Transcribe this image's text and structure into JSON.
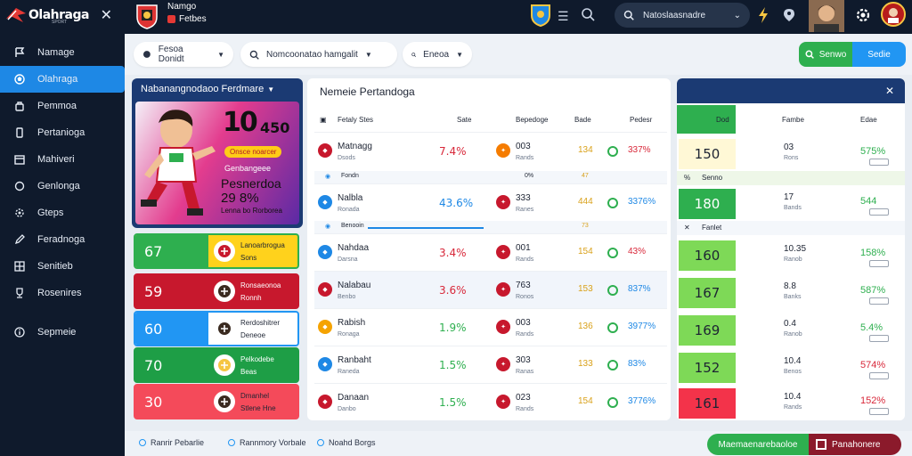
{
  "app": {
    "brand": "Olahraga",
    "brand_sub": "SPORT"
  },
  "sidebar": {
    "items": [
      {
        "label": "Namage",
        "icon": "flag-icon"
      },
      {
        "label": "Olahraga",
        "icon": "ball-icon",
        "active": true
      },
      {
        "label": "Pemmoa",
        "icon": "bag-icon"
      },
      {
        "label": "Pertanioga",
        "icon": "phone-icon"
      },
      {
        "label": "Mahiveri",
        "icon": "calendar-icon"
      },
      {
        "label": "Genlonga",
        "icon": "chat-icon"
      },
      {
        "label": "Gteps",
        "icon": "settings-icon"
      },
      {
        "label": "Feradnoga",
        "icon": "pen-icon"
      },
      {
        "label": "Senitieb",
        "icon": "grid-icon"
      },
      {
        "label": "Rosenires",
        "icon": "trophy-icon"
      },
      {
        "label": "Sepmeie",
        "icon": "info-icon"
      }
    ]
  },
  "topbar": {
    "title": "Namgo",
    "subtitle": "Fetbes",
    "search_text": "Natoslaasnadre"
  },
  "filters": [
    {
      "label": "Fesoa  Donidt",
      "chevron": true
    },
    {
      "label": "Nomcoonatao hamgalit",
      "chevron": true
    },
    {
      "label": "Eneoa",
      "chevron": true
    }
  ],
  "toggle": {
    "a": "Senwo",
    "b": "Sedie"
  },
  "promo": {
    "header": "Nabanangnodaoo  Ferdmare",
    "big": "10",
    "big2": "450",
    "tag": "Onsce noarcer",
    "l1": "Genbangeee",
    "l2": "Pesnerdoa",
    "l3": "29 8%",
    "l4": "Lenna bo  Rorborea"
  },
  "quick": [
    {
      "num": "67",
      "l1": "Lanoarbrogua",
      "l2": "Sons",
      "left": "#2eaf4f",
      "right": "#ffd21c",
      "text": "#1d2433"
    },
    {
      "num": "59",
      "l1": "Ronsaeonoa",
      "l2": "Ronnh",
      "left": "#c7182d",
      "right": "#c7182d",
      "text": "#ffffff"
    },
    {
      "num": "60",
      "l1": "Rerdoshitrer",
      "l2": "Deneoe",
      "left": "#2196f3",
      "right": "#ffffff",
      "text": "#1d2433"
    },
    {
      "num": "70",
      "l1": "Pelkodebe",
      "l2": "Beas",
      "left": "#1e9e46",
      "right": "#1e9e46",
      "text": "#ffffff"
    },
    {
      "num": "30",
      "l1": "Dmanhel",
      "l2": "Stlene  Hne",
      "left": "#f44a5a",
      "right": "#f44a5a",
      "text": "#1d2433"
    }
  ],
  "main": {
    "title": "Nemeie  Pertandoga",
    "headers": {
      "team": "Fetaly  Stes",
      "a": "Sate",
      "b": "Bepedoge",
      "c": "Bade",
      "d": "Pedesr"
    },
    "rows": [
      {
        "name": "Matnagg",
        "sub": "Dsods",
        "pct": "7.4%",
        "pct_color": "#d8283a",
        "b1": "003",
        "b2": "Rands",
        "odd": "134",
        "exc": "337%",
        "exc_color": "#d8283a",
        "ic1": "#c7182d",
        "ic2": "#f57c00"
      },
      {
        "name": "Nalbla",
        "sub": "Ronada",
        "pct": "43.6%",
        "pct_color": "#1e88e5",
        "b1": "333",
        "b2": "Ranes",
        "odd": "444",
        "exc": "3376%",
        "exc_color": "#1e88e5",
        "ic1": "#1e88e5",
        "ic2": "#c7182d"
      },
      {
        "name": "Nahdaa",
        "sub": "Darsna",
        "pct": "3.4%",
        "pct_color": "#d8283a",
        "b1": "001",
        "b2": "Rands",
        "odd": "154",
        "exc": "43%",
        "exc_color": "#d8283a",
        "ic1": "#1e88e5",
        "ic2": "#c7182d"
      },
      {
        "name": "Nalabau",
        "sub": "Benbo",
        "pct": "3.6%",
        "pct_color": "#d8283a",
        "b1": "763",
        "b2": "Ronos",
        "odd": "153",
        "exc": "837%",
        "exc_color": "#1e88e5",
        "ic1": "#c7182d",
        "ic2": "#c7182d"
      },
      {
        "name": "Rabish",
        "sub": "Ronaga",
        "pct": "1.9%",
        "pct_color": "#2eaf4f",
        "b1": "003",
        "b2": "Rands",
        "odd": "136",
        "exc": "3977%",
        "exc_color": "#1e88e5",
        "ic1": "#f5a300",
        "ic2": "#c7182d"
      },
      {
        "name": "Ranbaht",
        "sub": "Raneda",
        "pct": "1.5%",
        "pct_color": "#2eaf4f",
        "b1": "303",
        "b2": "Ranas",
        "odd": "133",
        "exc": "83%",
        "exc_color": "#1e88e5",
        "ic1": "#1e88e5",
        "ic2": "#c7182d"
      },
      {
        "name": "Danaan",
        "sub": "Danbo",
        "pct": "1.5%",
        "pct_color": "#2eaf4f",
        "b1": "023",
        "b2": "Rands",
        "odd": "154",
        "exc": "3776%",
        "exc_color": "#1e88e5",
        "ic1": "#c7182d",
        "ic2": "#c7182d"
      }
    ],
    "thin1": {
      "a": "Fondn",
      "b": "0%",
      "c": "47"
    },
    "thin2": {
      "a": "Benooin",
      "b": "73"
    }
  },
  "right": {
    "headers": {
      "a": "Dod",
      "b": "Fambe",
      "c": "Edae"
    },
    "thin1": "Senno",
    "thin2": "Fanlet",
    "rows": [
      {
        "num": "150",
        "bg": "#fff8d6",
        "color": "#1d2433",
        "v1": "03",
        "v2": "Rons",
        "v3": "575%",
        "v3c": "#2eaf4f"
      },
      {
        "num": "180",
        "bg": "#2eaf4f",
        "color": "#ffffff",
        "v1": "17",
        "v2": "Bands",
        "v3": "544",
        "v3c": "#2eaf4f"
      },
      {
        "num": "160",
        "bg": "#7ed957",
        "color": "#1d2433",
        "v1": "10.35",
        "v2": "Ranob",
        "v3": "158%",
        "v3c": "#2eaf4f"
      },
      {
        "num": "167",
        "bg": "#7ed957",
        "color": "#1d2433",
        "v1": "8.8",
        "v2": "Banks",
        "v3": "587%",
        "v3c": "#2eaf4f"
      },
      {
        "num": "169",
        "bg": "#7ed957",
        "color": "#1d2433",
        "v1": "0.4",
        "v2": "Ranob",
        "v3": "5.4%",
        "v3c": "#2eaf4f"
      },
      {
        "num": "152",
        "bg": "#7ed957",
        "color": "#1d2433",
        "v1": "10.4",
        "v2": "Benos",
        "v3": "574%",
        "v3c": "#d8283a"
      },
      {
        "num": "161",
        "bg": "#f3334a",
        "color": "#1d2433",
        "v1": "10.4",
        "v2": "Rands",
        "v3": "152%",
        "v3c": "#d8283a"
      }
    ]
  },
  "bottom": {
    "chips": [
      "Ranrir  Pebarlie",
      "Rannmory  Vorbale",
      "Noahd Borgs"
    ],
    "green": "Maemaenarebaoloe",
    "red": "Panahonere"
  }
}
